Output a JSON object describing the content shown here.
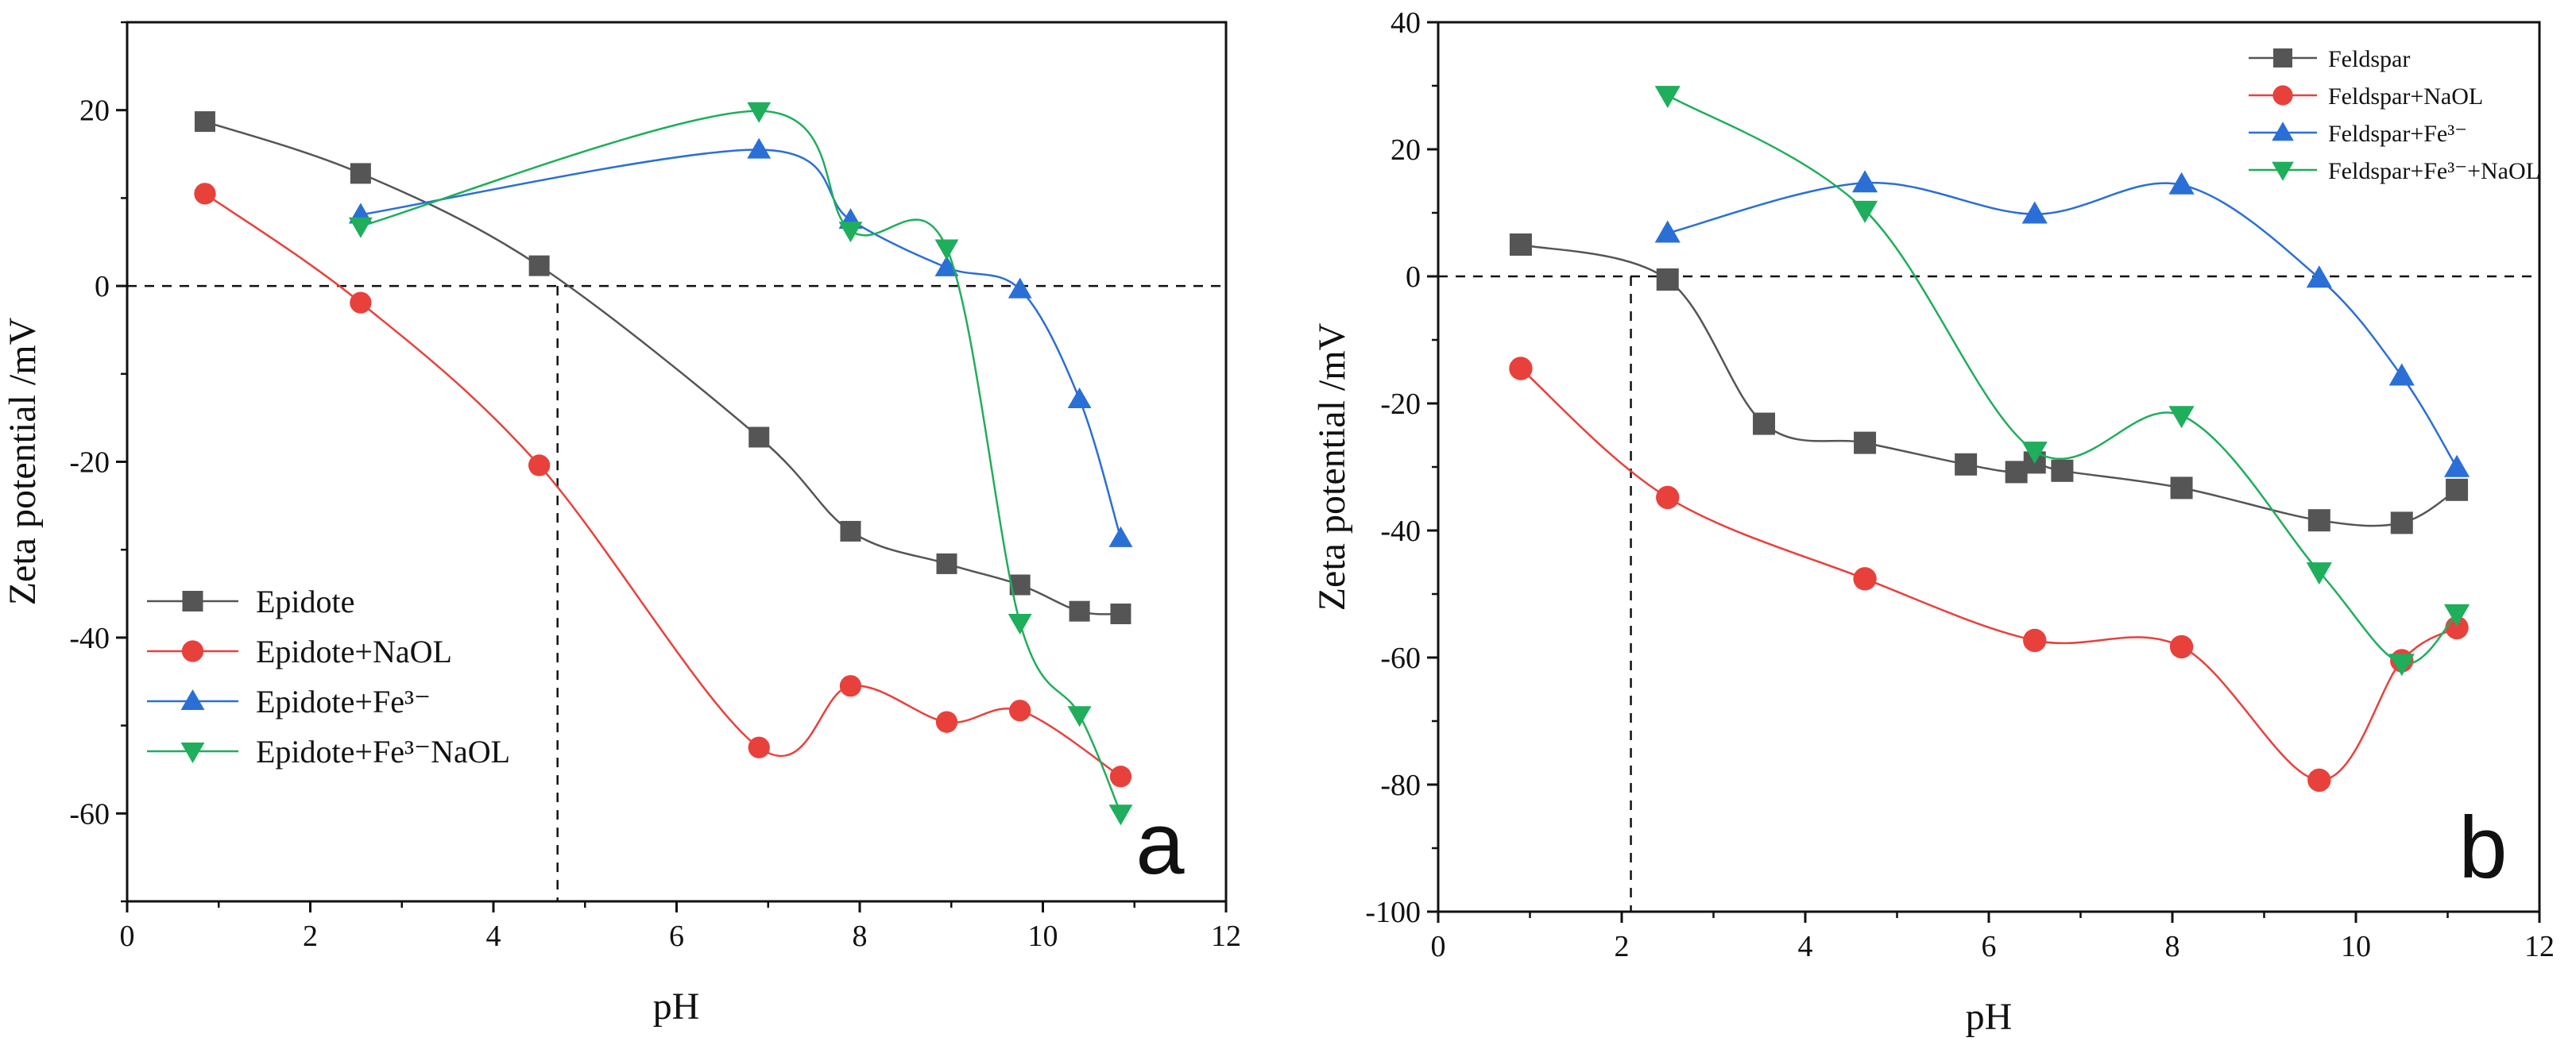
{
  "chart_data": [
    {
      "type": "line",
      "panel_label": "a",
      "xlabel": "pH",
      "ylabel": "Zeta potential /mV",
      "xlim": [
        0,
        12
      ],
      "ylim": [
        -70,
        30
      ],
      "xticks": [
        "0",
        "2",
        "4",
        "6",
        "8",
        "10",
        "12"
      ],
      "yticks": [
        "-60",
        "-40",
        "-20",
        "0",
        "20"
      ],
      "zero_line": 0,
      "guide_x": 4.7,
      "legend_position": "bottom-left",
      "series": [
        {
          "name": "Epidote",
          "marker": "square",
          "color": "#555555",
          "x": [
            0.85,
            2.55,
            4.5,
            6.9,
            7.9,
            8.95,
            9.75,
            10.4,
            10.85
          ],
          "y": [
            18.7,
            12.8,
            2.3,
            -17.2,
            -27.9,
            -31.6,
            -34.0,
            -37.0,
            -37.3
          ]
        },
        {
          "name": "Epidote+NaOL",
          "marker": "circle",
          "color": "#e8413c",
          "x": [
            0.85,
            2.55,
            4.5,
            6.9,
            7.9,
            8.95,
            9.75,
            10.85
          ],
          "y": [
            10.5,
            -1.9,
            -20.4,
            -52.5,
            -45.5,
            -49.6,
            -48.3,
            -55.8
          ]
        },
        {
          "name": "Epidote+Fe³⁻",
          "marker": "triangle-up",
          "color": "#2a6fd6",
          "x": [
            2.55,
            6.9,
            7.9,
            8.95,
            9.75,
            10.4,
            10.85
          ],
          "y": [
            8.1,
            15.5,
            7.5,
            2.1,
            -0.4,
            -12.9,
            -28.7
          ]
        },
        {
          "name": "Epidote+Fe³⁻NaOL",
          "marker": "triangle-down",
          "color": "#1fae5b",
          "x": [
            2.55,
            6.9,
            7.9,
            8.95,
            9.75,
            10.4,
            10.85
          ],
          "y": [
            6.8,
            19.9,
            6.3,
            4.3,
            -38.3,
            -48.8,
            -60.0
          ]
        }
      ]
    },
    {
      "type": "line",
      "panel_label": "b",
      "xlabel": "pH",
      "ylabel": "Zeta potential /mV",
      "xlim": [
        0,
        12
      ],
      "ylim": [
        -100,
        40
      ],
      "xticks": [
        "0",
        "2",
        "4",
        "6",
        "8",
        "10",
        "12"
      ],
      "yticks": [
        "-100",
        "-80",
        "-60",
        "-40",
        "-20",
        "0",
        "20",
        "40"
      ],
      "zero_line": 0,
      "guide_x": 2.1,
      "legend_position": "top-right",
      "series": [
        {
          "name": "Feldspar",
          "marker": "square",
          "color": "#555555",
          "x": [
            0.9,
            2.5,
            3.55,
            4.65,
            5.75,
            6.3,
            6.5,
            6.8,
            8.1,
            9.6,
            10.5,
            11.1
          ],
          "y": [
            5.0,
            -0.5,
            -23.2,
            -26.2,
            -29.6,
            -30.8,
            -29.3,
            -30.6,
            -33.3,
            -38.4,
            -38.8,
            -33.6
          ]
        },
        {
          "name": "Feldspar+NaOL",
          "marker": "circle",
          "color": "#e8413c",
          "x": [
            0.9,
            2.5,
            4.65,
            6.5,
            8.1,
            9.6,
            10.5,
            11.1
          ],
          "y": [
            -14.5,
            -34.8,
            -47.6,
            -57.3,
            -58.3,
            -79.3,
            -60.5,
            -55.3
          ]
        },
        {
          "name": "Feldspar+Fe³⁻",
          "marker": "triangle-up",
          "color": "#2a6fd6",
          "x": [
            2.5,
            4.65,
            6.5,
            8.1,
            9.6,
            10.5,
            11.1
          ],
          "y": [
            6.8,
            14.7,
            9.8,
            14.4,
            -0.3,
            -15.7,
            -30.1
          ]
        },
        {
          "name": "Feldspar+Fe³⁻+NaOL",
          "marker": "triangle-down",
          "color": "#1fae5b",
          "x": [
            2.5,
            4.65,
            6.5,
            8.1,
            9.6,
            10.5,
            11.1
          ],
          "y": [
            28.5,
            10.4,
            -27.5,
            -21.9,
            -46.5,
            -60.9,
            -53.1
          ]
        }
      ]
    }
  ]
}
